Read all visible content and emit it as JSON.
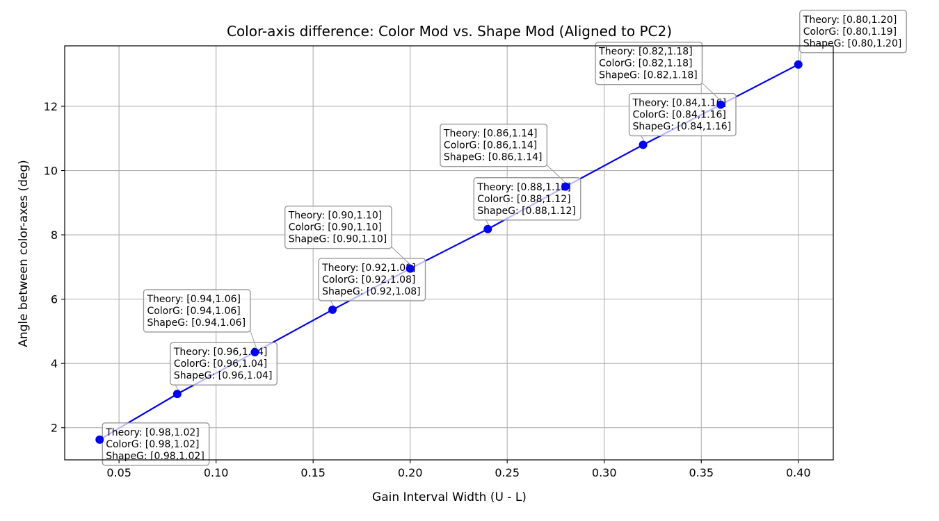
{
  "chart_data": {
    "type": "line",
    "title": "Color-axis difference: Color Mod vs. Shape Mod (Aligned to PC2)",
    "xlabel": "Gain Interval Width (U - L)",
    "ylabel": "Angle between color-axes (deg)",
    "xlim": [
      0.022,
      0.418
    ],
    "ylim": [
      1.0,
      13.88
    ],
    "grid": true,
    "x_ticks": [
      "0.05",
      "0.10",
      "0.15",
      "0.20",
      "0.25",
      "0.30",
      "0.35",
      "0.40"
    ],
    "y_ticks": [
      "2",
      "4",
      "6",
      "8",
      "10",
      "12"
    ],
    "colors": {
      "series": "#0000ff",
      "grid": "#b0b0b0",
      "box_edge": "#999999"
    },
    "series": [
      {
        "x": [
          0.04,
          0.08,
          0.12,
          0.16,
          0.2,
          0.24,
          0.28,
          0.32,
          0.36,
          0.4
        ],
        "y": [
          1.63,
          3.05,
          4.35,
          5.67,
          6.95,
          8.18,
          9.5,
          10.8,
          12.05,
          13.3
        ]
      }
    ],
    "annotations": [
      {
        "lines": [
          "Theory: [0.98,1.02]",
          "ColorG: [0.98,1.02]",
          "ShapeG: [0.98,1.02]"
        ]
      },
      {
        "lines": [
          "Theory: [0.96,1.04]",
          "ColorG: [0.96,1.04]",
          "ShapeG: [0.96,1.04]"
        ]
      },
      {
        "lines": [
          "Theory: [0.94,1.06]",
          "ColorG: [0.94,1.06]",
          "ShapeG: [0.94,1.06]"
        ]
      },
      {
        "lines": [
          "Theory: [0.92,1.08]",
          "ColorG: [0.92,1.08]",
          "ShapeG: [0.92,1.08]"
        ]
      },
      {
        "lines": [
          "Theory: [0.90,1.10]",
          "ColorG: [0.90,1.10]",
          "ShapeG: [0.90,1.10]"
        ]
      },
      {
        "lines": [
          "Theory: [0.88,1.12]",
          "ColorG: [0.88,1.12]",
          "ShapeG: [0.88,1.12]"
        ]
      },
      {
        "lines": [
          "Theory: [0.86,1.14]",
          "ColorG: [0.86,1.14]",
          "ShapeG: [0.86,1.14]"
        ]
      },
      {
        "lines": [
          "Theory: [0.84,1.16]",
          "ColorG: [0.84,1.16]",
          "ShapeG: [0.84,1.16]"
        ]
      },
      {
        "lines": [
          "Theory: [0.82,1.18]",
          "ColorG: [0.82,1.18]",
          "ShapeG: [0.82,1.18]"
        ]
      },
      {
        "lines": [
          "Theory: [0.80,1.20]",
          "ColorG: [0.80,1.19]",
          "ShapeG: [0.80,1.20]"
        ]
      }
    ]
  }
}
